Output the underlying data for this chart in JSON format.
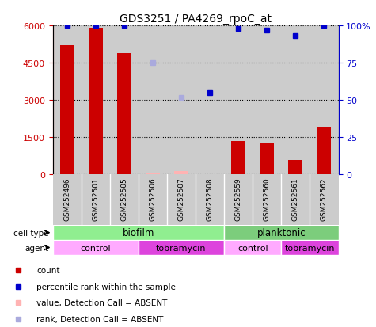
{
  "title": "GDS3251 / PA4269_rpoC_at",
  "samples": [
    "GSM252496",
    "GSM252501",
    "GSM252505",
    "GSM252506",
    "GSM252507",
    "GSM252508",
    "GSM252559",
    "GSM252560",
    "GSM252561",
    "GSM252562"
  ],
  "count_values": [
    5200,
    5900,
    4900,
    80,
    150,
    30,
    1350,
    1280,
    580,
    1900
  ],
  "count_absent": [
    false,
    false,
    false,
    true,
    true,
    true,
    false,
    false,
    false,
    false
  ],
  "percentile_values": [
    100,
    100,
    100,
    75,
    52,
    55,
    98,
    97,
    93,
    100
  ],
  "percentile_absent": [
    false,
    false,
    false,
    true,
    true,
    false,
    false,
    false,
    false,
    false
  ],
  "ylim_left": [
    0,
    6000
  ],
  "ylim_right": [
    0,
    100
  ],
  "yticks_left": [
    0,
    1500,
    3000,
    4500,
    6000
  ],
  "yticks_right": [
    0,
    25,
    50,
    75,
    100
  ],
  "cell_type_groups": [
    {
      "label": "biofilm",
      "start": 0,
      "end": 6,
      "color": "#90EE90"
    },
    {
      "label": "planktonic",
      "start": 6,
      "end": 10,
      "color": "#7CCD7C"
    }
  ],
  "agent_groups": [
    {
      "label": "control",
      "start": 0,
      "end": 3,
      "color": "#FFAAFF"
    },
    {
      "label": "tobramycin",
      "start": 3,
      "end": 6,
      "color": "#DD44DD"
    },
    {
      "label": "control",
      "start": 6,
      "end": 8,
      "color": "#FFAAFF"
    },
    {
      "label": "tobramycin",
      "start": 8,
      "end": 10,
      "color": "#DD44DD"
    }
  ],
  "bar_color_present": "#CC0000",
  "bar_color_absent": "#FFB3B3",
  "dot_color_present": "#0000CC",
  "dot_color_absent": "#AAAADD",
  "bar_width": 0.5,
  "tick_color_left": "#CC0000",
  "tick_color_right": "#0000CC",
  "sample_bg": "#CCCCCC",
  "legend_items": [
    {
      "color": "#CC0000",
      "label": "count"
    },
    {
      "color": "#0000CC",
      "label": "percentile rank within the sample"
    },
    {
      "color": "#FFB3B3",
      "label": "value, Detection Call = ABSENT"
    },
    {
      "color": "#AAAADD",
      "label": "rank, Detection Call = ABSENT"
    }
  ]
}
